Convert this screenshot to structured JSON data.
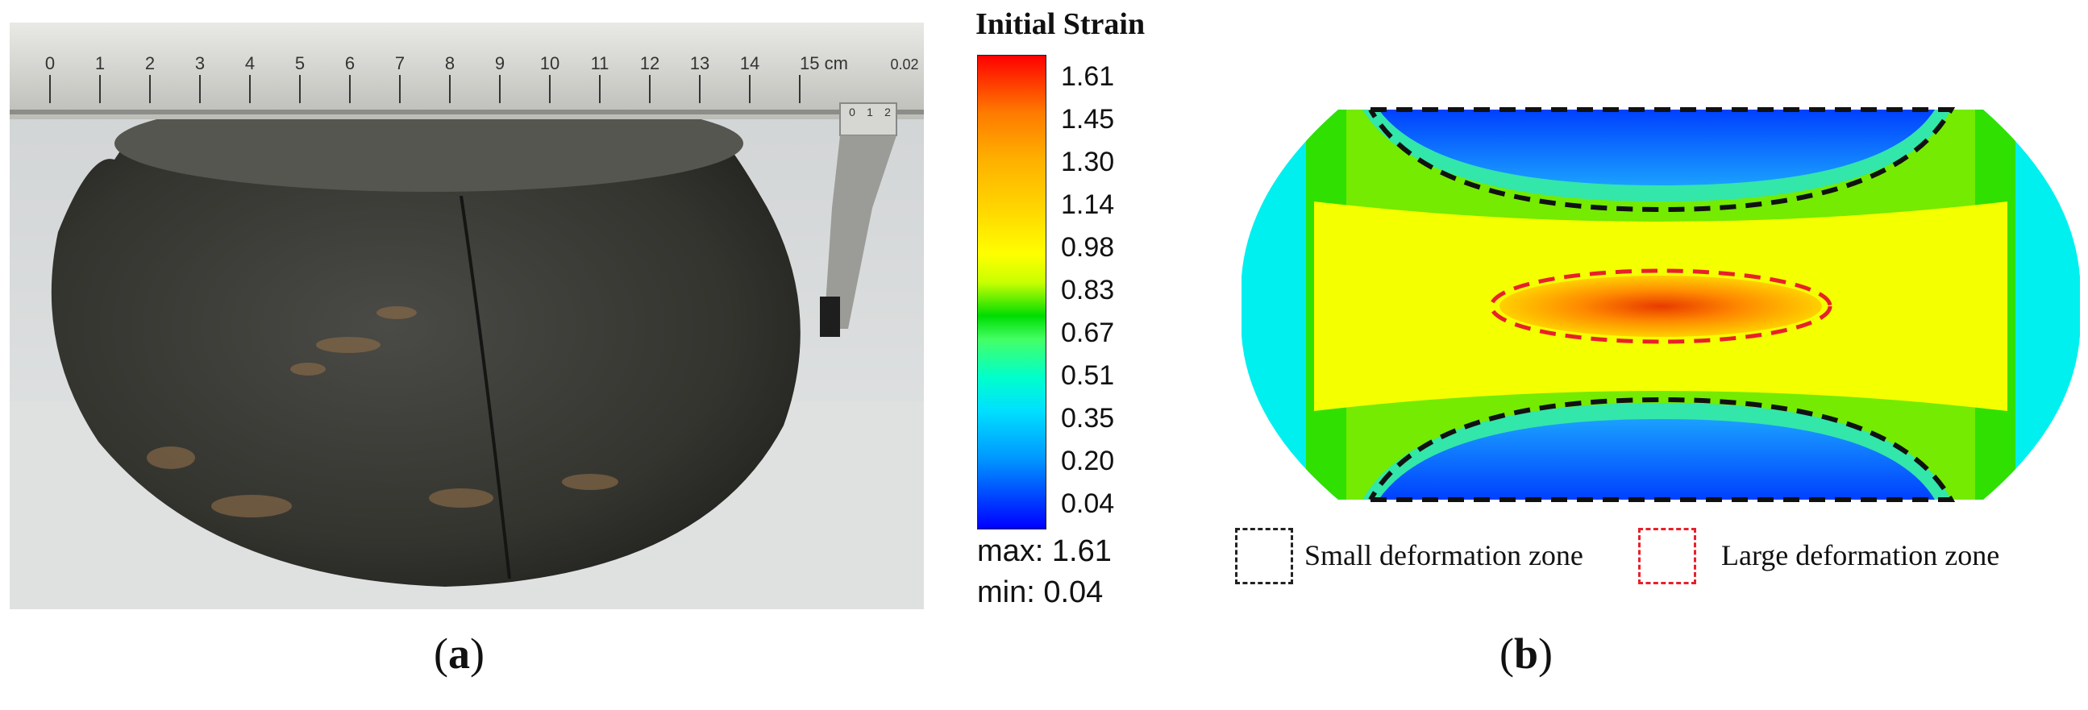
{
  "legend": {
    "title": "Initial Strain",
    "ticks": [
      "1.61",
      "1.45",
      "1.30",
      "1.14",
      "0.98",
      "0.83",
      "0.67",
      "0.51",
      "0.35",
      "0.20",
      "0.04"
    ],
    "max_label": "max: 1.61",
    "min_label": "min: 0.04"
  },
  "ruler": {
    "labels": [
      "0",
      "1",
      "2",
      "3",
      "4",
      "5",
      "6",
      "7",
      "8",
      "9",
      "10",
      "11",
      "12",
      "13",
      "14",
      "15 cm"
    ],
    "vernier_labels": [
      "0",
      "1",
      "2"
    ],
    "corner": "0.02"
  },
  "zones": {
    "small_label": "Small deformation zone",
    "large_label": "Large deformation zone",
    "small_color": "#222222",
    "large_color": "#e8202a"
  },
  "panels": {
    "a_open": "(",
    "a_letter": "a",
    "a_close": ")",
    "b_open": "(",
    "b_letter": "b",
    "b_close": ")"
  }
}
